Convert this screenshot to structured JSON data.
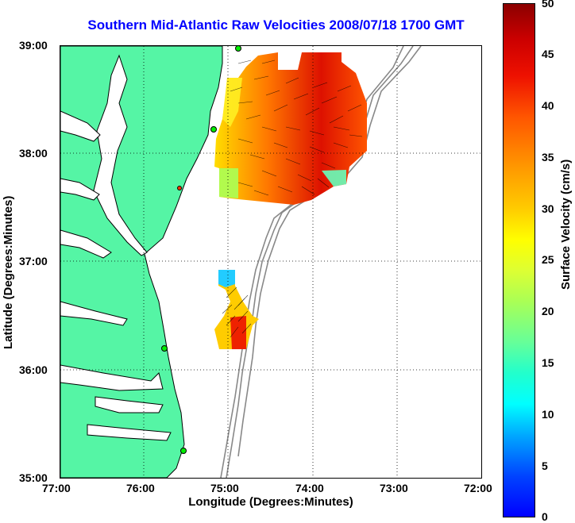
{
  "title": "Southern Mid-Atlantic Raw Velocities 2008/07/18 1700 GMT",
  "x_axis": {
    "label": "Longitude (Degrees:Minutes)",
    "ticks": [
      "77:00",
      "76:00",
      "75:00",
      "74:00",
      "73:00",
      "72:00"
    ]
  },
  "y_axis": {
    "label": "Latitude (Degrees:Minutes)",
    "ticks": [
      "39:00",
      "38:00",
      "37:00",
      "36:00",
      "35:00"
    ]
  },
  "colorbar": {
    "label": "Surface Velocity (cm/s)",
    "ticks": [
      "50",
      "45",
      "40",
      "35",
      "30",
      "25",
      "20",
      "15",
      "10",
      "5",
      "0"
    ],
    "range": [
      0,
      50
    ]
  },
  "colors": {
    "land": "#55f5a5",
    "coast": "#000000",
    "bathymetry": "#888888",
    "title": "#0000ff",
    "station": "#00ee00",
    "station_alt": "#ff3300"
  }
}
